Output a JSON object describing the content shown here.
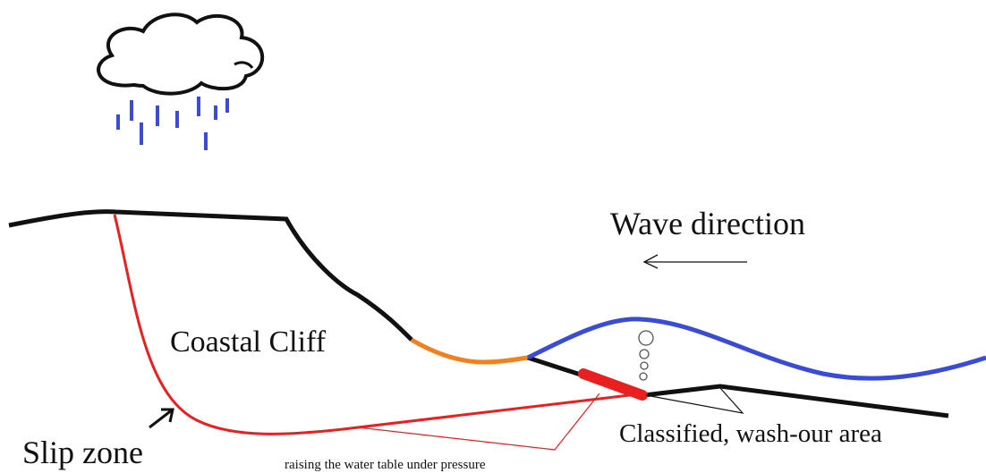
{
  "labels": {
    "wave_direction": "Wave direction",
    "coastal_cliff": "Coastal Cliff",
    "slip_zone": "Slip zone",
    "wash_out_area": "Classified, wash-our area",
    "water_table": "raising the water table under pressure"
  }
}
